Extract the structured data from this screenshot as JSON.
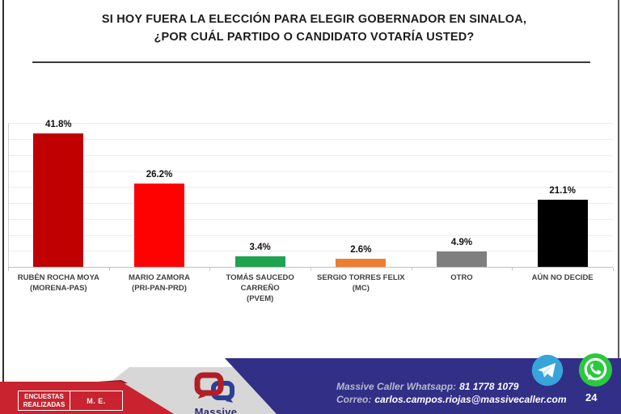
{
  "page": {
    "title_line1": "SI HOY FUERA LA ELECCIÓN PARA ELEGIR GOBERNADOR EN SINALOA,",
    "title_line2": "¿POR CUÁL PARTIDO O CANDIDATO VOTARÍA USTED?"
  },
  "chart_data": {
    "type": "bar",
    "title": "SI HOY FUERA LA ELECCIÓN PARA ELEGIR GOBERNADOR EN SINALOA, ¿POR CUÁL PARTIDO O CANDIDATO VOTARÍA USTED?",
    "categories": [
      "RUBÉN ROCHA MOYA (MORENA-PAS)",
      "MARIO ZAMORA (PRI-PAN-PRD)",
      "TOMÁS SAUCEDO CARREÑO (PVEM)",
      "SERGIO TORRES FELIX (MC)",
      "OTRO",
      "AÚN NO DECIDE"
    ],
    "category_label_lines": [
      [
        "RUBÉN ROCHA MOYA",
        "(MORENA-PAS)"
      ],
      [
        "MARIO ZAMORA",
        "(PRI-PAN-PRD)"
      ],
      [
        "TOMÁS SAUCEDO CARREÑO",
        "(PVEM)"
      ],
      [
        "SERGIO TORRES FELIX (MC)"
      ],
      [
        "OTRO"
      ],
      [
        "AÚN NO DECIDE"
      ]
    ],
    "values": [
      41.8,
      26.2,
      3.4,
      2.6,
      4.9,
      21.1
    ],
    "value_labels": [
      "41.8%",
      "26.2%",
      "3.4%",
      "2.6%",
      "4.9%",
      "21.1%"
    ],
    "bar_colors": [
      "#C00000",
      "#FE0101",
      "#1FA350",
      "#ED7D31",
      "#7F7F7F",
      "#000000"
    ],
    "xlabel": "",
    "ylabel": "",
    "ylim": [
      0,
      45
    ],
    "grid": true,
    "grid_step": 5,
    "legend": "none"
  },
  "footer": {
    "stats_table": {
      "col1_line1": "ENCUESTAS",
      "col1_line2": "REALIZADAS",
      "col2": "M. E."
    },
    "logo_text": "Massive",
    "contact": {
      "whatsapp_label": "Massive Caller Whatsapp:",
      "whatsapp_number": "81 1778 1079",
      "email_label": "Correo:",
      "email": "carlos.campos.riojas@massivecaller.com"
    },
    "page_number": "24",
    "colors": {
      "banner_red": "#C8232F",
      "banner_dark_red": "#8E1B22",
      "navy": "#312F86",
      "gray_band": "#D7D7D7",
      "telegram_blue": "#37A4DC",
      "whatsapp_green": "#2BC940",
      "logo_red": "#B01E26",
      "logo_blue": "#2C3E95"
    }
  }
}
